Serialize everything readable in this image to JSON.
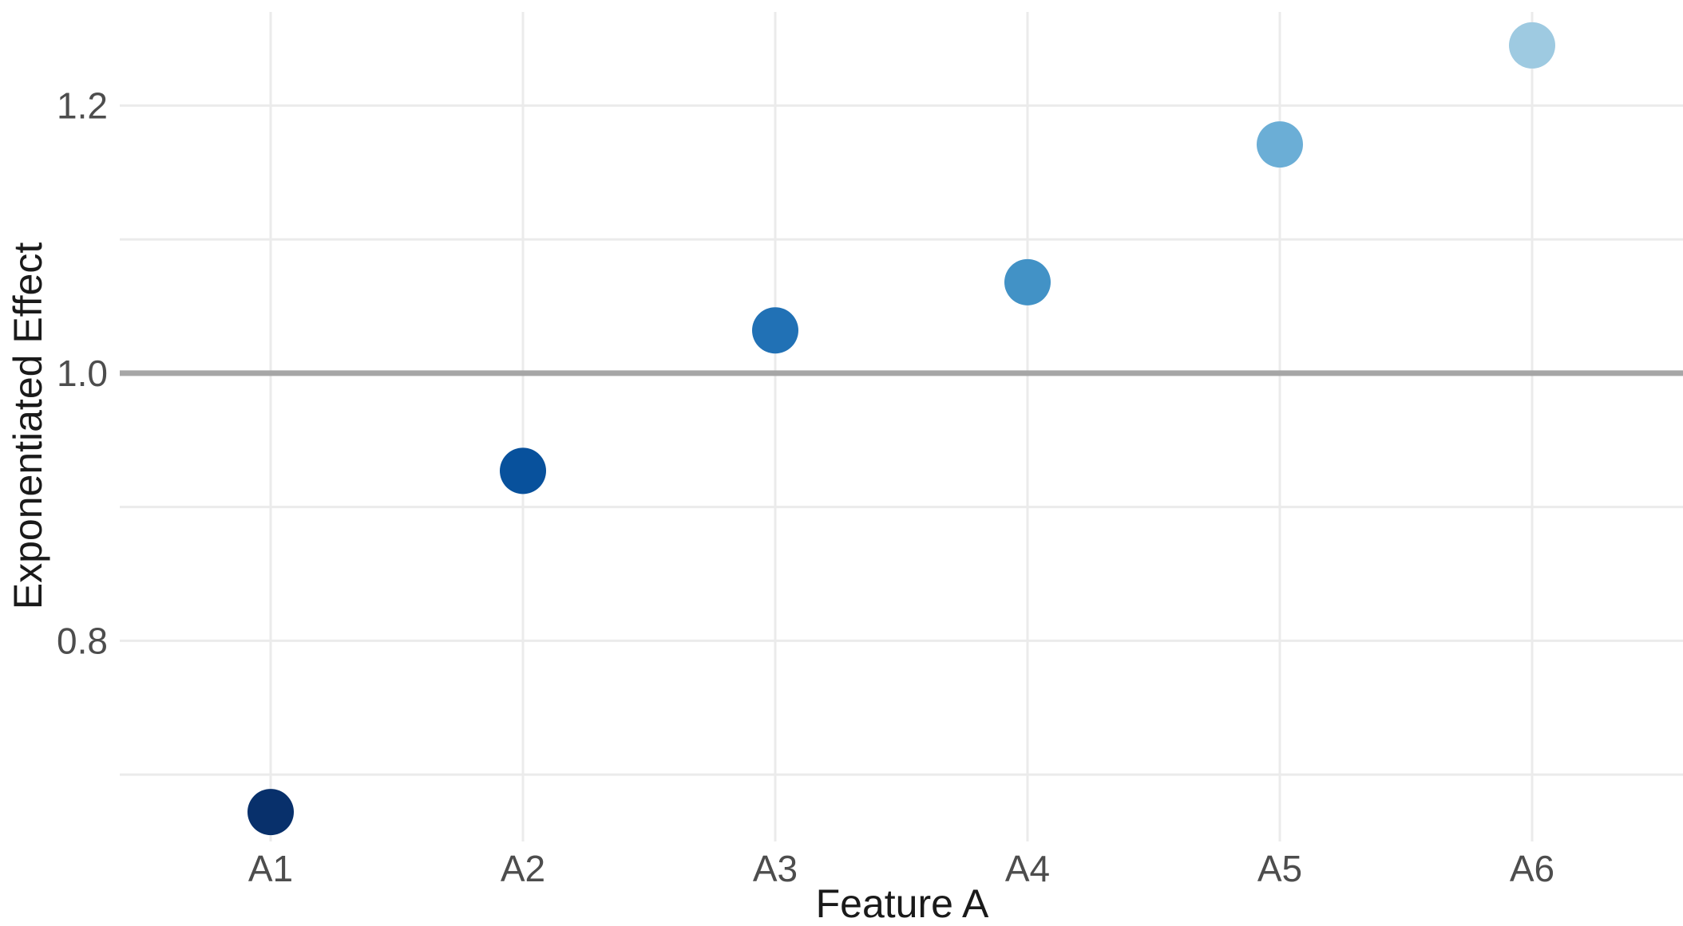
{
  "chart_data": {
    "type": "scatter",
    "title": "",
    "xlabel": "Feature A",
    "ylabel": "Exponentiated Effect",
    "categories": [
      "A1",
      "A2",
      "A3",
      "A4",
      "A5",
      "A6"
    ],
    "values": [
      0.672,
      0.927,
      1.032,
      1.068,
      1.171,
      1.245
    ],
    "point_colors": [
      "#08306b",
      "#08519c",
      "#2171b5",
      "#4292c6",
      "#6baed6",
      "#9ecae1"
    ],
    "yticks": [
      0.8,
      1.0,
      1.2
    ],
    "ytick_labels": [
      "0.8",
      "1.0",
      "1.2"
    ],
    "ylim": [
      0.65,
      1.27
    ],
    "reference_line": 1.0,
    "grid": true,
    "legend": "none"
  },
  "colors": {
    "grid": "#ebebeb",
    "reference_line": "#a6a6a6"
  }
}
